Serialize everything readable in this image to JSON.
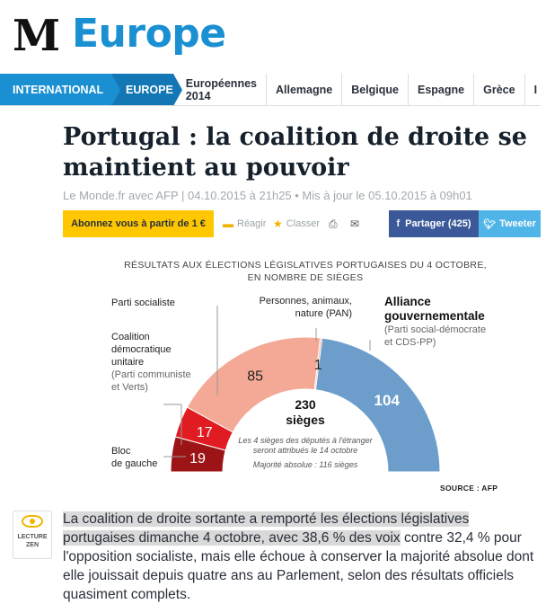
{
  "header": {
    "logo": "M",
    "section_title": "Europe"
  },
  "nav": {
    "international": "INTERNATIONAL",
    "europe": "EUROPE",
    "items": [
      "Européennes 2014",
      "Allemagne",
      "Belgique",
      "Espagne",
      "Grèce",
      "I"
    ]
  },
  "article": {
    "title": "Portugal : la coalition de droite se maintient au pouvoir",
    "byline": "Le Monde.fr avec AFP | 04.10.2015 à 21h25 • Mis à jour le 05.10.2015 à 09h01"
  },
  "actions": {
    "subscribe": "Abonnez vous à partir de 1 €",
    "react": "Réagir",
    "classify": "Classer",
    "share_facebook": "Partager (425)",
    "share_twitter": "Tweeter",
    "icons": [
      "comment-icon",
      "star-icon",
      "print-icon",
      "mail-icon",
      "facebook-icon",
      "twitter-icon"
    ]
  },
  "chart_data": {
    "type": "pie",
    "title_line1": "RÉSULTATS AUX ÉLECTIONS LÉGISLATIVES PORTUGAISES DU 4 OCTOBRE,",
    "title_line2": "EN NOMBRE DE SIÈGES",
    "total": "230",
    "total_unit": "sièges",
    "note1": "Les 4 sièges des députés à l'étranger",
    "note2": "seront attribués le 14 octobre",
    "note3": "Majorité absolue : 116 sièges",
    "source": "SOURCE : AFP",
    "segments": [
      {
        "name": "Bloc de gauche",
        "value": 19,
        "color": "#9d1417"
      },
      {
        "name": "Coalition démocratique unitaire",
        "value": 17,
        "color": "#e01b22"
      },
      {
        "name": "Parti socialiste",
        "value": 85,
        "color": "#f3a996"
      },
      {
        "name": "Personnes, animaux, nature (PAN)",
        "value": 1,
        "color": "#f3a996"
      },
      {
        "name": "Alliance gouvernementale",
        "value": 104,
        "color": "#6d9ecb"
      }
    ],
    "labels": {
      "ps": "Parti socialiste",
      "cdu_l1": "Coalition",
      "cdu_l2": "démocratique",
      "cdu_l3": "unitaire",
      "cdu_sub1": "(Parti communiste",
      "cdu_sub2": "et Verts)",
      "pan_l1": "Personnes, animaux,",
      "pan_l2": "nature (PAN)",
      "alliance_l1": "Alliance",
      "alliance_l2": "gouvernementale",
      "alliance_sub1": "(Parti social-démocrate",
      "alliance_sub2": "et CDS-PP)",
      "bloc_l1": "Bloc",
      "bloc_l2": "de gauche"
    }
  },
  "zen": {
    "label_l1": "LECTURE",
    "label_l2": "ZEN"
  },
  "body": {
    "highlighted": "La coalition de droite sortante a remporté les élections législatives portugaises dimanche 4 octobre, avec 38,6 % des voix",
    "rest": " contre 32,4 % pour l'opposition socialiste, mais elle échoue à conserver la majorité absolue dont elle jouissait depuis quatre ans au Parlement, selon des résultats officiels quasiment complets."
  }
}
